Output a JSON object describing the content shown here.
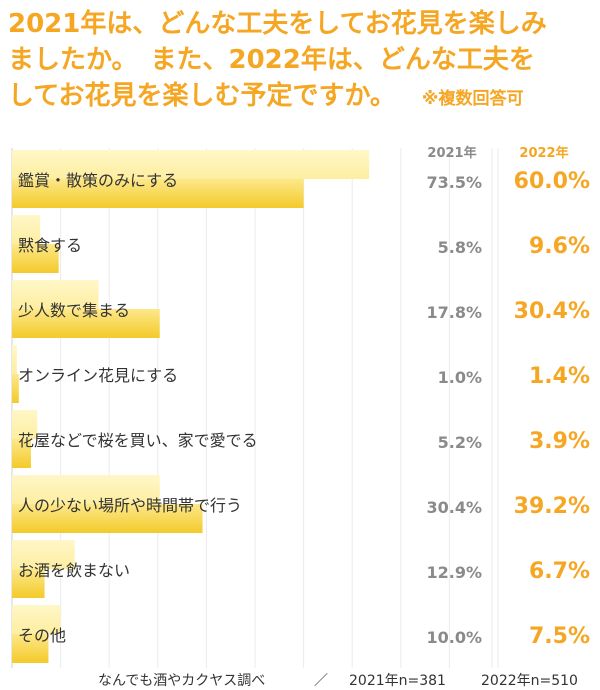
{
  "title_lines": [
    "2021年は、どんな工夫をしてお花見を楽しみ",
    "ましたか。　また、2022年は、どんな工夫を",
    "してお花見を楽しむ予定ですか。"
  ],
  "title_note": "※複数回答可",
  "col_header_2021": "2021年",
  "col_header_2022": "2022年",
  "chart_data": {
    "type": "bar",
    "orientation": "horizontal",
    "categories": [
      "鑑賞・散策のみにする",
      "黙食する",
      "少人数で集まる",
      "オンライン花見にする",
      "花屋などで桜を買い、家で愛でる",
      "人の少ない場所や時間帯で行う",
      "お酒を飲まない",
      "その他"
    ],
    "series": [
      {
        "name": "2021年",
        "values": [
          73.5,
          5.8,
          17.8,
          1.0,
          5.2,
          30.4,
          12.9,
          10.0
        ],
        "labels": [
          "73.5%",
          "5.8%",
          "17.8%",
          "1.0%",
          "5.2%",
          "30.4%",
          "12.9%",
          "10.0%"
        ]
      },
      {
        "name": "2022年",
        "values": [
          60.0,
          9.6,
          30.4,
          1.4,
          3.9,
          39.2,
          6.7,
          7.5
        ],
        "labels": [
          "60.0%",
          "9.6%",
          "30.4%",
          "1.4%",
          "3.9%",
          "39.2%",
          "6.7%",
          "7.5%"
        ]
      }
    ],
    "xlim": [
      0,
      100
    ],
    "grid": true,
    "colors": {
      "series_2021": "#fff3b3",
      "series_2022": "#f7d43c",
      "accent": "#f5a623"
    }
  },
  "footer": {
    "source": "なんでも酒やカクヤス調べ",
    "separator": "／",
    "n2021": "2021年n=381",
    "n2022": "2022年n=510"
  }
}
